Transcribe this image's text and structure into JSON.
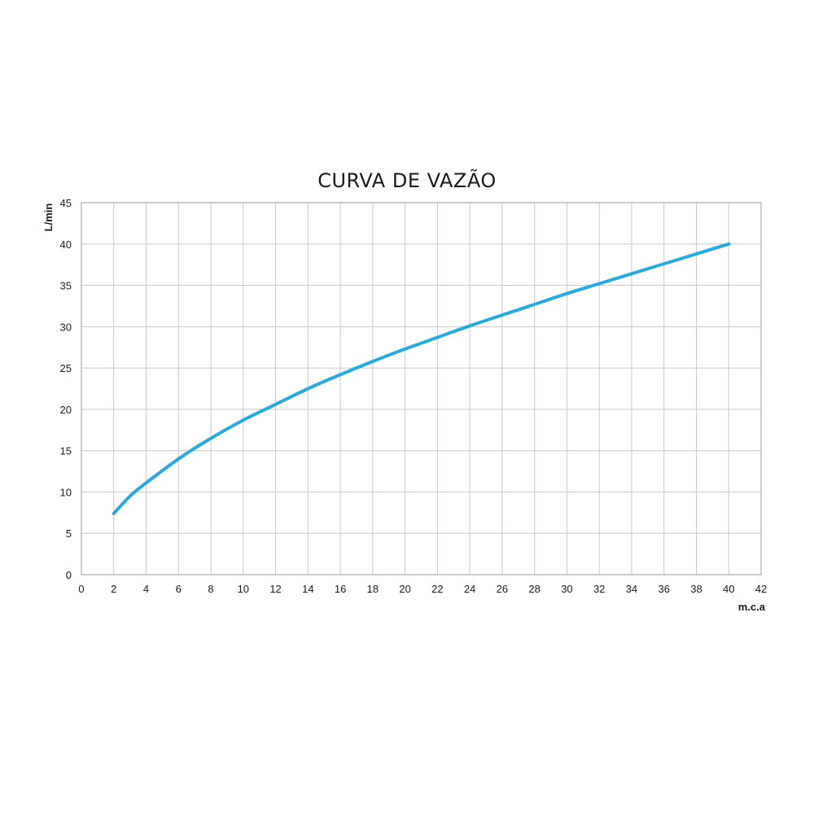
{
  "chart_data": {
    "type": "line",
    "title": "CURVA DE VAZÃO",
    "xlabel": "m.c.a",
    "ylabel": "L/min",
    "xlim": [
      0,
      42
    ],
    "ylim": [
      0,
      45
    ],
    "x_ticks": [
      0,
      2,
      4,
      6,
      8,
      10,
      12,
      14,
      16,
      18,
      20,
      22,
      24,
      26,
      28,
      30,
      32,
      34,
      36,
      38,
      40,
      42
    ],
    "y_ticks": [
      0,
      5,
      10,
      15,
      20,
      25,
      30,
      35,
      40,
      45
    ],
    "grid": true,
    "series": [
      {
        "color": "#29a9dc",
        "x": [
          2,
          3,
          4,
          6,
          8,
          10,
          12,
          14,
          16,
          18,
          20,
          22,
          24,
          26,
          28,
          30,
          32,
          34,
          36,
          38,
          40
        ],
        "values": [
          7.4,
          9.5,
          11.1,
          14.0,
          16.5,
          18.7,
          20.6,
          22.5,
          24.2,
          25.8,
          27.3,
          28.7,
          30.1,
          31.4,
          32.7,
          34.0,
          35.2,
          36.4,
          37.6,
          38.8,
          40.0
        ]
      }
    ]
  }
}
